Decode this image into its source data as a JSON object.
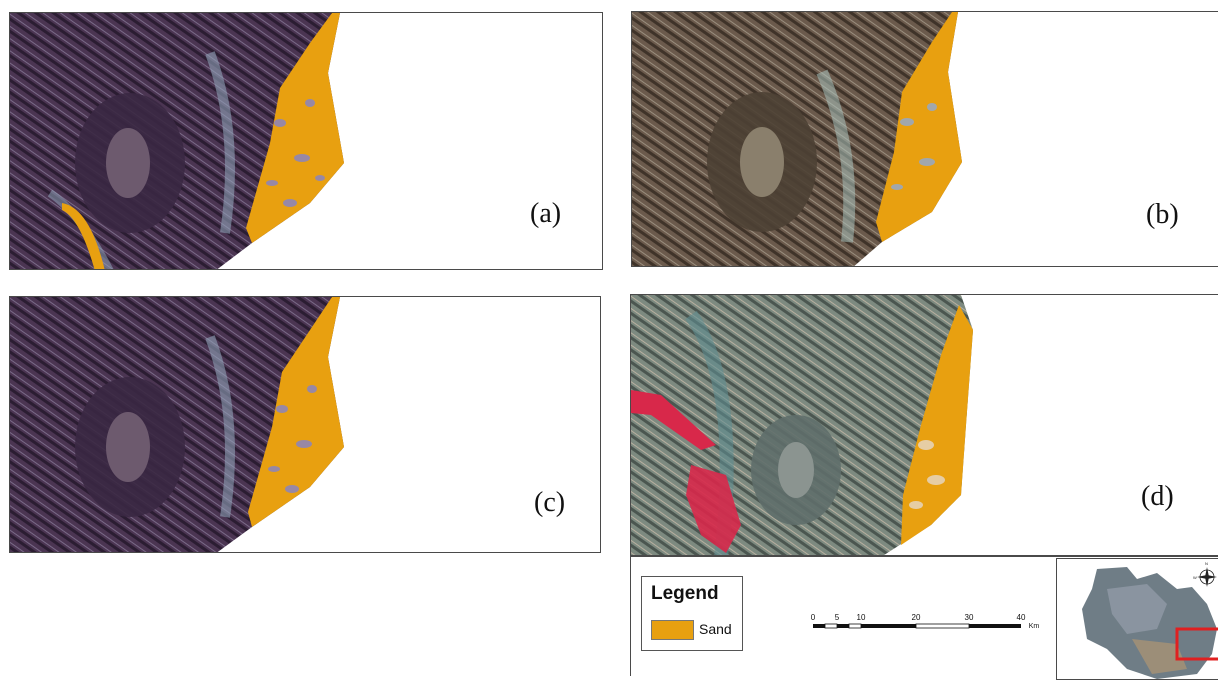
{
  "panels": {
    "a": {
      "label": "(a)"
    },
    "b": {
      "label": "(b)"
    },
    "c": {
      "label": "(c)"
    },
    "d": {
      "label": "(d)"
    }
  },
  "legend": {
    "title": "Legend",
    "items": [
      {
        "label": "Sand",
        "color": "#E8A010"
      }
    ]
  },
  "scale": {
    "ticks": [
      "0",
      "5",
      "10",
      "20",
      "30",
      "40"
    ],
    "unit": "Km"
  },
  "colors": {
    "sand": "#E8A010",
    "terrain_dark": "#4a3550",
    "terrain_natural": "#6b5a4a",
    "terrain_false": "#6f8a86",
    "vegetation_red": "#d8284a",
    "inset_highlight": "#e02020"
  },
  "icons": {
    "north_arrow": "compass-rose-icon"
  }
}
